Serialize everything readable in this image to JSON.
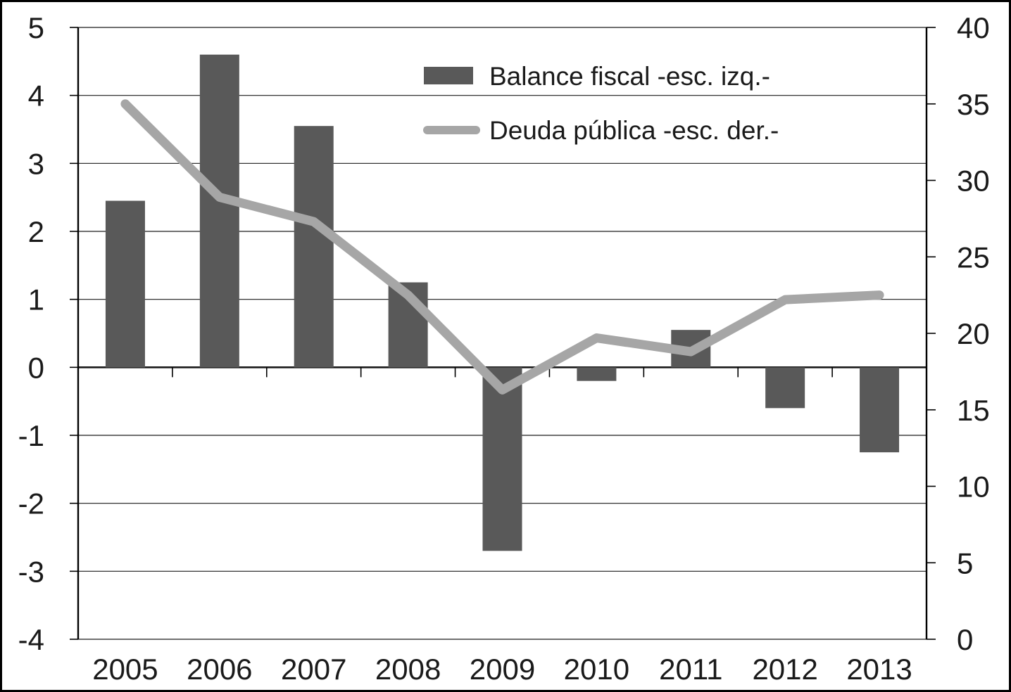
{
  "chart_data": {
    "type": "bar",
    "subtype": "combo-bar-line-dual-axis",
    "title": "",
    "xlabel": "",
    "ylabel": "",
    "categories": [
      "2005",
      "2006",
      "2007",
      "2008",
      "2009",
      "2010",
      "2011",
      "2012",
      "2013"
    ],
    "series": [
      {
        "name": "Balance fiscal -esc. izq.-",
        "type": "bar",
        "axis": "left",
        "color": "#595959",
        "values": [
          2.45,
          4.6,
          3.55,
          1.25,
          -2.7,
          -0.2,
          0.55,
          -0.6,
          -1.25
        ]
      },
      {
        "name": "Deuda pública -esc. der.-",
        "type": "line",
        "axis": "right",
        "color": "#a6a6a6",
        "values": [
          35,
          28.9,
          27.3,
          22.5,
          16.3,
          19.7,
          18.8,
          22.2,
          22.5
        ]
      }
    ],
    "left_axis": {
      "min": -4,
      "max": 5,
      "tick_labels": [
        "5",
        "4",
        "3",
        "2",
        "1",
        "0",
        "-1",
        "-2",
        "-3",
        "-4"
      ],
      "ticks": [
        5,
        4,
        3,
        2,
        1,
        0,
        -1,
        -2,
        -3,
        -4
      ]
    },
    "right_axis": {
      "min": 0,
      "max": 40,
      "tick_labels": [
        "40",
        "35",
        "30",
        "25",
        "20",
        "15",
        "10",
        "5",
        "0"
      ],
      "ticks": [
        40,
        35,
        30,
        25,
        20,
        15,
        10,
        5,
        0
      ]
    },
    "grid": true,
    "legend_position": "top-center",
    "colors": {
      "bar": "#595959",
      "line": "#a6a6a6",
      "grid": "#1a1a1a",
      "axis": "#000000",
      "text": "#1a1a1a",
      "background": "#ffffff"
    }
  }
}
